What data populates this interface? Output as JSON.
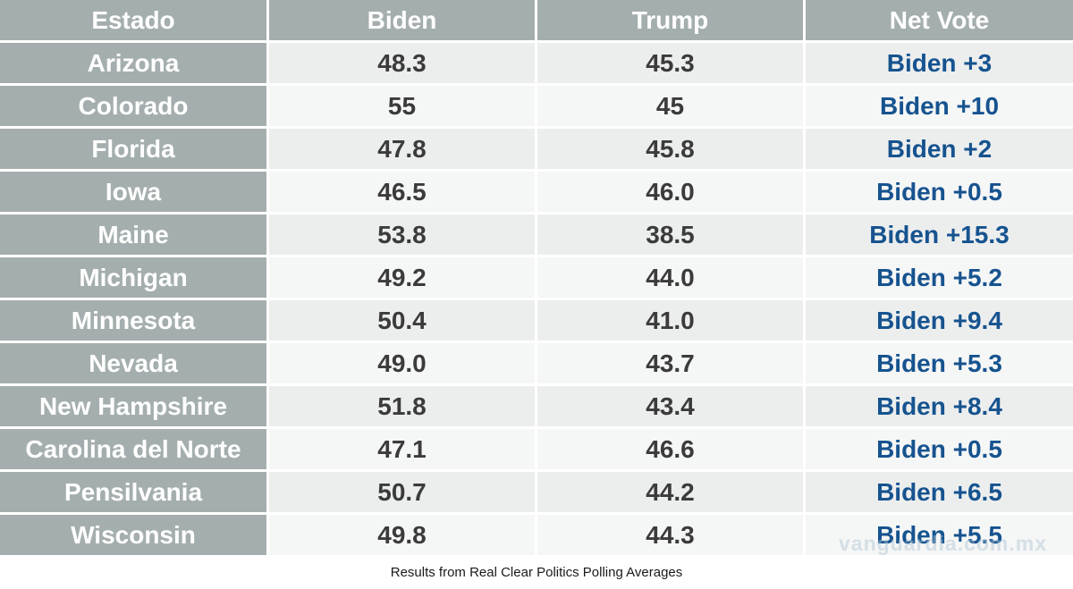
{
  "table": {
    "headers": [
      "Estado",
      "Biden",
      "Trump",
      "Net Vote"
    ],
    "rows": [
      {
        "estado": "Arizona",
        "biden": "48.3",
        "trump": "45.3",
        "net": "Biden +3"
      },
      {
        "estado": "Colorado",
        "biden": "55",
        "trump": "45",
        "net": "Biden +10"
      },
      {
        "estado": "Florida",
        "biden": "47.8",
        "trump": "45.8",
        "net": "Biden +2"
      },
      {
        "estado": "Iowa",
        "biden": "46.5",
        "trump": "46.0",
        "net": "Biden +0.5"
      },
      {
        "estado": "Maine",
        "biden": "53.8",
        "trump": "38.5",
        "net": "Biden +15.3"
      },
      {
        "estado": "Michigan",
        "biden": "49.2",
        "trump": "44.0",
        "net": "Biden +5.2"
      },
      {
        "estado": "Minnesota",
        "biden": "50.4",
        "trump": "41.0",
        "net": "Biden +9.4"
      },
      {
        "estado": "Nevada",
        "biden": "49.0",
        "trump": "43.7",
        "net": "Biden +5.3"
      },
      {
        "estado": "New Hampshire",
        "biden": "51.8",
        "trump": "43.4",
        "net": "Biden +8.4"
      },
      {
        "estado": "Carolina del Norte",
        "biden": "47.1",
        "trump": "46.6",
        "net": "Biden +0.5"
      },
      {
        "estado": "Pensilvania",
        "biden": "50.7",
        "trump": "44.2",
        "net": "Biden +6.5"
      },
      {
        "estado": "Wisconsin",
        "biden": "49.8",
        "trump": "44.3",
        "net": "Biden +5.5"
      }
    ]
  },
  "footer": {
    "caption": "Results from Real Clear Politics Polling Averages"
  },
  "watermark": {
    "text": "vanguardia.com.mx"
  },
  "colors": {
    "header-bg": "#a5aeae",
    "row-a-bg": "#eceeee",
    "row-b-bg": "#f5f6f6",
    "state-text": "#ffffff",
    "value-text": "#3b3b3b",
    "net-text": "#16538f",
    "caption-text": "#1a1a1a",
    "watermark-text": "#adc4d4"
  },
  "chart_data": {
    "type": "table",
    "columns": [
      "Estado",
      "Biden",
      "Trump",
      "Net Vote"
    ],
    "rows": [
      [
        "Arizona",
        48.3,
        45.3,
        "Biden +3"
      ],
      [
        "Colorado",
        55,
        45,
        "Biden +10"
      ],
      [
        "Florida",
        47.8,
        45.8,
        "Biden +2"
      ],
      [
        "Iowa",
        46.5,
        46.0,
        "Biden +0.5"
      ],
      [
        "Maine",
        53.8,
        38.5,
        "Biden +15.3"
      ],
      [
        "Michigan",
        49.2,
        44.0,
        "Biden +5.2"
      ],
      [
        "Minnesota",
        50.4,
        41.0,
        "Biden +9.4"
      ],
      [
        "Nevada",
        49.0,
        43.7,
        "Biden +5.3"
      ],
      [
        "New Hampshire",
        51.8,
        43.4,
        "Biden +8.4"
      ],
      [
        "Carolina del Norte",
        47.1,
        46.6,
        "Biden +0.5"
      ],
      [
        "Pensilvania",
        50.7,
        44.2,
        "Biden +6.5"
      ],
      [
        "Wisconsin",
        49.8,
        44.3,
        "Biden +5.5"
      ]
    ],
    "caption": "Results from Real Clear Politics Polling Averages",
    "legend_position": "none",
    "grid": false
  }
}
